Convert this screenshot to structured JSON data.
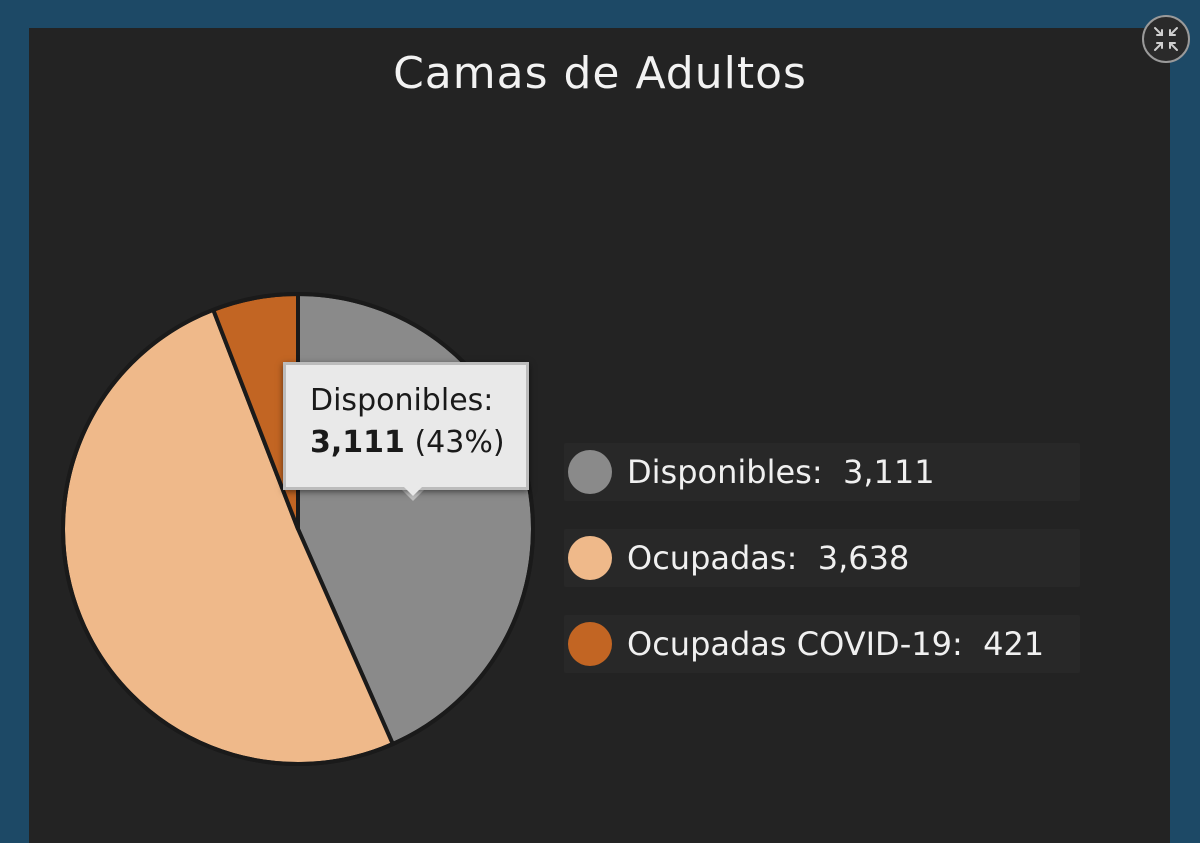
{
  "colors": {
    "background": "#1d4966",
    "panel": "#232323",
    "disponibles": "#8a8a8a",
    "ocupadas": "#efb98a",
    "ocupadas_covid": "#c26523"
  },
  "header": {
    "collapse_icon": "collapse-arrows-icon"
  },
  "chart_data": {
    "type": "pie",
    "title": "Camas de Adultos",
    "slices": [
      {
        "label": "Disponibles",
        "value": 3111,
        "value_text": "3,111",
        "color": "#8a8a8a"
      },
      {
        "label": "Ocupadas",
        "value": 3638,
        "value_text": "3,638",
        "color": "#efb98a"
      },
      {
        "label": "Ocupadas COVID-19",
        "value": 421,
        "value_text": "421",
        "color": "#c26523"
      }
    ],
    "legend_placement": "right",
    "tooltip": {
      "label": "Disponibles:",
      "value": "3,111",
      "percent": "(43%)"
    }
  },
  "legend": {
    "items": [
      {
        "text": "Disponibles:  3,111"
      },
      {
        "text": "Ocupadas:  3,638"
      },
      {
        "text": "Ocupadas COVID-19:  421"
      }
    ]
  }
}
